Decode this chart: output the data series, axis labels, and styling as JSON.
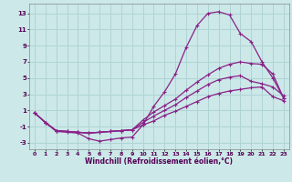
{
  "xlabel": "Windchill (Refroidissement éolien,°C)",
  "xlim": [
    -0.5,
    23.5
  ],
  "ylim": [
    -3.8,
    14.2
  ],
  "yticks": [
    -3,
    -1,
    1,
    3,
    5,
    7,
    9,
    11,
    13
  ],
  "xticks": [
    0,
    1,
    2,
    3,
    4,
    5,
    6,
    7,
    8,
    9,
    10,
    11,
    12,
    13,
    14,
    15,
    16,
    17,
    18,
    19,
    20,
    21,
    22,
    23
  ],
  "bg_color": "#cce8e8",
  "grid_color": "#b0d4d4",
  "line_color": "#882288",
  "lines": [
    [
      0.7,
      -0.5,
      -1.6,
      -1.7,
      -1.8,
      -2.5,
      -2.8,
      -2.6,
      -2.4,
      -2.3,
      -0.8,
      1.5,
      3.3,
      5.5,
      8.8,
      11.5,
      13.0,
      13.2,
      12.8,
      10.5,
      9.5,
      7.0,
      5.0,
      2.5
    ],
    [
      0.7,
      -0.5,
      -1.5,
      -1.6,
      -1.7,
      -1.8,
      -1.7,
      -1.6,
      -1.5,
      -1.4,
      -0.8,
      -0.3,
      0.4,
      0.9,
      1.5,
      2.1,
      2.7,
      3.1,
      3.4,
      3.6,
      3.8,
      3.9,
      2.7,
      2.2
    ],
    [
      0.7,
      -0.5,
      -1.5,
      -1.6,
      -1.7,
      -1.8,
      -1.7,
      -1.6,
      -1.5,
      -1.4,
      -0.5,
      0.3,
      1.0,
      1.7,
      2.6,
      3.4,
      4.2,
      4.8,
      5.1,
      5.3,
      4.6,
      4.3,
      3.9,
      2.8
    ],
    [
      0.7,
      -0.5,
      -1.5,
      -1.6,
      -1.7,
      -1.8,
      -1.7,
      -1.6,
      -1.5,
      -1.4,
      -0.2,
      0.8,
      1.6,
      2.4,
      3.5,
      4.5,
      5.4,
      6.2,
      6.7,
      7.0,
      6.8,
      6.7,
      5.5,
      2.5
    ]
  ]
}
